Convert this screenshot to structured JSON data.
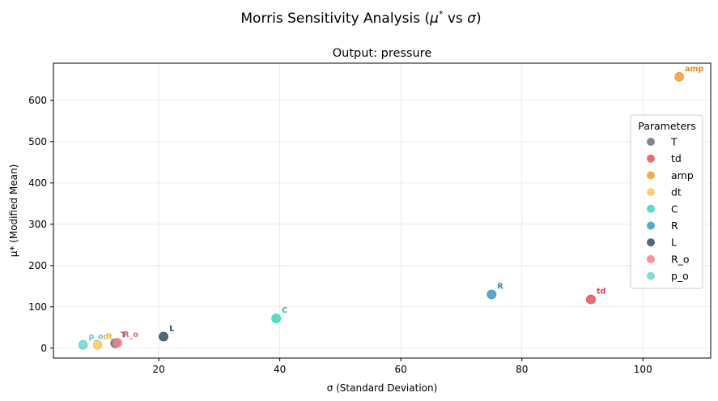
{
  "chart_data": {
    "type": "scatter",
    "suptitle": "Morris Sensitivity Analysis (μ* vs σ)",
    "suptitle_parts": {
      "prefix": "Morris Sensitivity Analysis (",
      "mu": "μ",
      "star": "*",
      "vs": " vs ",
      "sigma": "σ",
      "suffix": ")"
    },
    "title": "Output: pressure",
    "xlabel": "σ (Standard Deviation)",
    "ylabel": "μ* (Modified Mean)",
    "xlim": [
      2.6,
      111.2
    ],
    "ylim": [
      -24,
      690
    ],
    "xticks": [
      20,
      40,
      60,
      80,
      100
    ],
    "yticks": [
      0,
      100,
      200,
      300,
      400,
      500,
      600
    ],
    "grid": true,
    "legend": {
      "title": "Parameters",
      "placement": "right"
    },
    "points": [
      {
        "name": "T",
        "label": "T",
        "x": 12.8,
        "y": 12,
        "color": "#6e6e80",
        "text_color": "#6e6e80"
      },
      {
        "name": "td",
        "label": "td",
        "x": 91.4,
        "y": 118,
        "color": "#e8505b",
        "text_color": "#e03d4a"
      },
      {
        "name": "amp",
        "label": "amp",
        "x": 106.0,
        "y": 657,
        "color": "#f39c33",
        "text_color": "#e8861a"
      },
      {
        "name": "dt",
        "label": "dt",
        "x": 9.9,
        "y": 8,
        "color": "#f8c85c",
        "text_color": "#f0b429"
      },
      {
        "name": "C",
        "label": "C",
        "x": 39.4,
        "y": 72,
        "color": "#3ad8b5",
        "text_color": "#1fc9a4"
      },
      {
        "name": "R",
        "label": "R",
        "x": 75.0,
        "y": 130,
        "color": "#3a99c0",
        "text_color": "#2a8ab3"
      },
      {
        "name": "L",
        "label": "L",
        "x": 20.8,
        "y": 28,
        "color": "#2f4f62",
        "text_color": "#2a4858"
      },
      {
        "name": "R_o",
        "label": "R_o",
        "x": 13.2,
        "y": 13,
        "color": "#f37f83",
        "text_color": "#e8636b"
      },
      {
        "name": "p_o",
        "label": "p_o",
        "x": 7.5,
        "y": 8,
        "color": "#6dd5c9",
        "text_color": "#5cc9bc"
      }
    ]
  }
}
